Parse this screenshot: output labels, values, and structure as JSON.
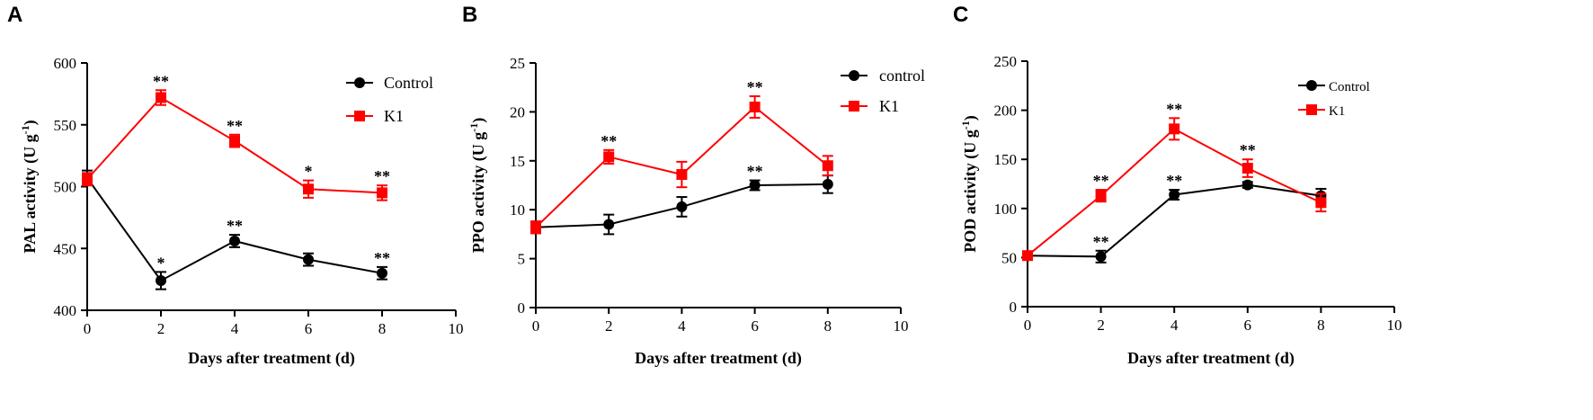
{
  "chart_data": [
    {
      "panel": "A",
      "type": "line",
      "ylabel": "PAL activity (U g",
      "ylabel_sup": "-1",
      "ylabel_tail": ")",
      "xlabel": "Days after treatment (d)",
      "xlim": [
        0,
        10
      ],
      "ylim": [
        400,
        600
      ],
      "xticks": [
        0,
        2,
        4,
        6,
        8,
        10
      ],
      "yticks": [
        400,
        450,
        500,
        550,
        600
      ],
      "legend": "top-right",
      "series": [
        {
          "name": "Control",
          "color": "#000000",
          "marker": "circle",
          "x": [
            0,
            2,
            4,
            6,
            8
          ],
          "y": [
            507,
            424,
            456,
            441,
            430
          ],
          "err": [
            6,
            7,
            5,
            5,
            5
          ],
          "sig": [
            "",
            "*",
            "**",
            "",
            "**"
          ]
        },
        {
          "name": "K1",
          "color": "#ff0000",
          "marker": "square",
          "x": [
            0,
            2,
            4,
            6,
            8
          ],
          "y": [
            506,
            572,
            537,
            498,
            495
          ],
          "err": [
            5,
            6,
            5,
            7,
            6
          ],
          "sig": [
            "",
            "**",
            "**",
            "*",
            "**"
          ]
        }
      ]
    },
    {
      "panel": "B",
      "type": "line",
      "ylabel": "PPO activity (U g",
      "ylabel_sup": "-1",
      "ylabel_tail": ")",
      "xlabel": "Days after treatment (d)",
      "xlim": [
        0,
        10
      ],
      "ylim": [
        0,
        25
      ],
      "xticks": [
        0,
        2,
        4,
        6,
        8,
        10
      ],
      "yticks": [
        0,
        5,
        10,
        15,
        20,
        25
      ],
      "legend": "top-right",
      "series": [
        {
          "name": "control",
          "color": "#000000",
          "marker": "circle",
          "x": [
            0,
            2,
            4,
            6,
            8
          ],
          "y": [
            8.2,
            8.5,
            10.3,
            12.5,
            12.6
          ],
          "err": [
            0.6,
            1.0,
            1.0,
            0.5,
            0.9
          ],
          "sig": [
            "",
            "",
            "",
            "**",
            ""
          ]
        },
        {
          "name": "K1",
          "color": "#ff0000",
          "marker": "square",
          "x": [
            0,
            2,
            4,
            6,
            8
          ],
          "y": [
            8.2,
            15.4,
            13.6,
            20.5,
            14.5
          ],
          "err": [
            0.6,
            0.7,
            1.3,
            1.1,
            1.0
          ],
          "sig": [
            "",
            "**",
            "",
            "**",
            ""
          ]
        }
      ]
    },
    {
      "panel": "C",
      "type": "line",
      "ylabel": "POD activity (U g",
      "ylabel_sup": "-1",
      "ylabel_tail": ")",
      "xlabel": "Days after treatment (d)",
      "xlim": [
        0,
        10
      ],
      "ylim": [
        0,
        250
      ],
      "xticks": [
        0,
        2,
        4,
        6,
        8,
        10
      ],
      "yticks": [
        0,
        50,
        100,
        150,
        200,
        250
      ],
      "legend": "top-right",
      "legend_small": true,
      "series": [
        {
          "name": "Control",
          "color": "#000000",
          "marker": "circle",
          "x": [
            0,
            2,
            4,
            6,
            8
          ],
          "y": [
            52,
            51,
            114,
            124,
            113
          ],
          "err": [
            4,
            6,
            5,
            3,
            7
          ],
          "sig": [
            "",
            "**",
            "**",
            "",
            ""
          ]
        },
        {
          "name": "K1",
          "color": "#ff0000",
          "marker": "square",
          "x": [
            0,
            2,
            4,
            6,
            8
          ],
          "y": [
            52,
            113,
            181,
            141,
            106
          ],
          "err": [
            4,
            6,
            11,
            9,
            9
          ],
          "sig": [
            "",
            "**",
            "**",
            "**",
            ""
          ]
        }
      ]
    }
  ]
}
